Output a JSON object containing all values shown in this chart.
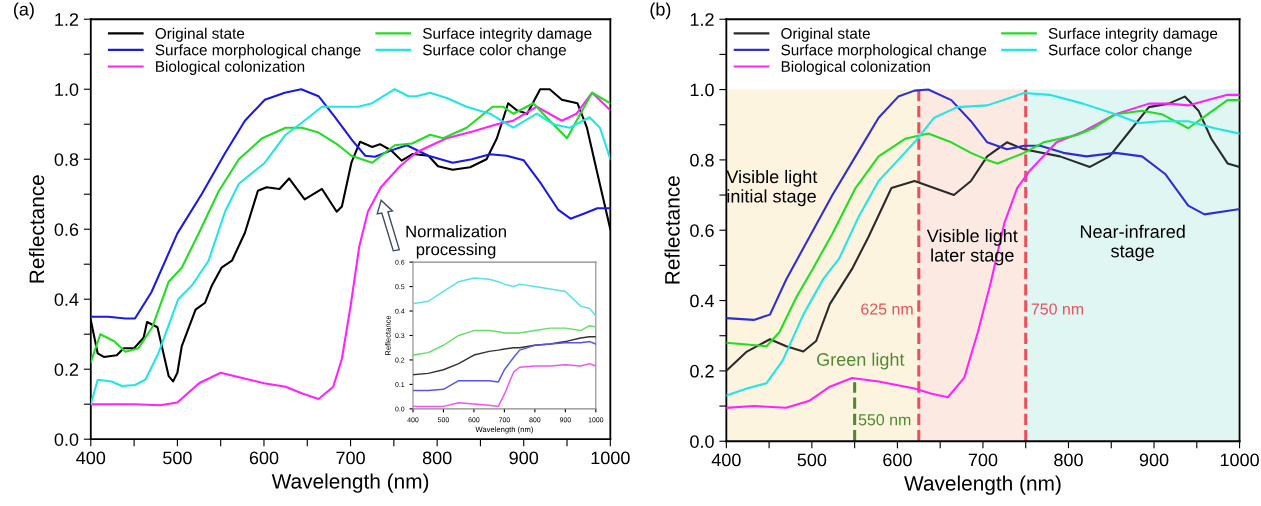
{
  "chart_data": [
    {
      "type": "line",
      "xlabel": "Wavelength (nm)",
      "ylabel": "Reflectance",
      "legend": "top",
      "grid": false,
      "marker": "none",
      "line_style": "solid",
      "annotations": [
        "(a)",
        "Normalization\nprocessing"
      ],
      "xlim": [
        400,
        1000
      ],
      "ylim": [
        0,
        1.2
      ],
      "xticks": [
        400,
        {
          "value": 450,
          "label": null
        },
        500,
        {
          "value": 550,
          "label": null
        },
        600,
        {
          "value": 650,
          "label": null
        },
        700,
        {
          "value": 750,
          "label": null
        },
        800,
        {
          "value": 850,
          "label": null
        },
        900,
        {
          "value": 950,
          "label": null
        },
        1000
      ],
      "yticks": [
        {
          "value": 0,
          "label": "0.0"
        },
        {
          "value": 0.1,
          "label": null
        },
        {
          "value": 0.2,
          "label": "0.2"
        },
        {
          "value": 0.3,
          "label": null
        },
        {
          "value": 0.4,
          "label": "0.4"
        },
        {
          "value": 0.5,
          "label": null
        },
        {
          "value": 0.6,
          "label": "0.6"
        },
        {
          "value": 0.7,
          "label": null
        },
        {
          "value": 0.8,
          "label": "0.8"
        },
        {
          "value": 0.9,
          "label": null
        },
        {
          "value": 1.0,
          "label": "1.0"
        },
        {
          "value": 1.1,
          "label": null
        },
        {
          "value": 1.2,
          "label": "1.2"
        }
      ],
      "series": [
        {
          "name": "Original state",
          "color": "#000000",
          "x": [
            400,
            408,
            415,
            430,
            438,
            450,
            461,
            465,
            477,
            490,
            495,
            500,
            505,
            521,
            532,
            540,
            551,
            563,
            578,
            593,
            603,
            618,
            629,
            647,
            667,
            684,
            690,
            701,
            711,
            725,
            734,
            747,
            759,
            772,
            790,
            801,
            818,
            838,
            857,
            869,
            882,
            892,
            904,
            919,
            930,
            944,
            962,
            973,
            985,
            1000
          ],
          "values": [
            0.34,
            0.245,
            0.235,
            0.24,
            0.26,
            0.26,
            0.29,
            0.335,
            0.32,
            0.18,
            0.165,
            0.19,
            0.265,
            0.37,
            0.39,
            0.44,
            0.49,
            0.51,
            0.59,
            0.71,
            0.72,
            0.715,
            0.745,
            0.685,
            0.715,
            0.65,
            0.665,
            0.79,
            0.85,
            0.835,
            0.843,
            0.825,
            0.796,
            0.815,
            0.81,
            0.78,
            0.77,
            0.777,
            0.8,
            0.86,
            0.96,
            0.94,
            0.93,
            1.0,
            1.0,
            0.97,
            0.96,
            0.89,
            0.76,
            0.6
          ]
        },
        {
          "name": "Surface morphological change",
          "color": "#1a1ae6",
          "x": [
            400,
            420,
            440,
            451,
            470,
            500,
            528,
            555,
            578,
            601,
            624,
            643,
            663,
            682,
            702,
            717,
            728,
            748,
            765,
            790,
            818,
            840,
            861,
            880,
            900,
            920,
            940,
            954,
            970,
            985,
            1000
          ],
          "values": [
            0.35,
            0.35,
            0.345,
            0.345,
            0.42,
            0.588,
            0.7,
            0.817,
            0.91,
            0.97,
            0.99,
            1.0,
            0.98,
            0.92,
            0.854,
            0.81,
            0.807,
            0.826,
            0.84,
            0.81,
            0.79,
            0.8,
            0.814,
            0.81,
            0.797,
            0.73,
            0.655,
            0.63,
            0.645,
            0.66,
            0.66
          ]
        },
        {
          "name": "Biological colonization",
          "color": "#ff22ff",
          "x": [
            400,
            450,
            480,
            500,
            525,
            550,
            575,
            600,
            625,
            645,
            663,
            680,
            690,
            700,
            710,
            720,
            735,
            757,
            776,
            811,
            842,
            869,
            888,
            915,
            944,
            961,
            979,
            1000
          ],
          "values": [
            0.1,
            0.1,
            0.097,
            0.105,
            0.16,
            0.19,
            0.175,
            0.16,
            0.15,
            0.13,
            0.115,
            0.15,
            0.23,
            0.38,
            0.55,
            0.65,
            0.72,
            0.78,
            0.82,
            0.86,
            0.88,
            0.9,
            0.91,
            0.95,
            0.91,
            0.93,
            0.99,
            0.94
          ]
        },
        {
          "name": "Surface integrity damage",
          "color": "#22dd22",
          "x": [
            400,
            411,
            427,
            440,
            455,
            471,
            490,
            505,
            525,
            548,
            571,
            598,
            625,
            644,
            663,
            686,
            701,
            725,
            751,
            771,
            792,
            807,
            834,
            864,
            876,
            888,
            911,
            930,
            950,
            961,
            979,
            1000
          ],
          "values": [
            0.22,
            0.3,
            0.28,
            0.25,
            0.26,
            0.32,
            0.45,
            0.49,
            0.59,
            0.71,
            0.8,
            0.86,
            0.89,
            0.89,
            0.876,
            0.84,
            0.81,
            0.79,
            0.84,
            0.845,
            0.87,
            0.86,
            0.89,
            0.95,
            0.95,
            0.93,
            0.96,
            0.91,
            0.86,
            0.91,
            0.99,
            0.96
          ]
        },
        {
          "name": "Surface color change",
          "color": "#22e5e5",
          "x": [
            400,
            408,
            424,
            436,
            451,
            463,
            478,
            501,
            517,
            536,
            555,
            571,
            601,
            625,
            644,
            667,
            686,
            709,
            725,
            751,
            767,
            776,
            792,
            811,
            834,
            861,
            888,
            915,
            934,
            953,
            976,
            988,
            1000
          ],
          "values": [
            0.1,
            0.17,
            0.165,
            0.152,
            0.155,
            0.17,
            0.245,
            0.4,
            0.44,
            0.51,
            0.65,
            0.73,
            0.79,
            0.87,
            0.905,
            0.95,
            0.95,
            0.95,
            0.96,
            1.0,
            0.98,
            0.98,
            0.99,
            0.975,
            0.95,
            0.93,
            0.89,
            0.93,
            0.9,
            0.89,
            0.92,
            0.89,
            0.8
          ]
        }
      ]
    },
    {
      "type": "line",
      "xlabel": "Wavelength (nm)",
      "ylabel": "Reflectance",
      "grid": false,
      "marker": "none",
      "line_style": "solid",
      "xlim": [
        400,
        1000
      ],
      "ylim": [
        0,
        0.6
      ],
      "xticks": [
        400,
        500,
        600,
        700,
        800,
        900,
        1000
      ],
      "yticks": [
        {
          "value": 0,
          "label": "0.0"
        },
        {
          "value": 0.1,
          "label": "0.1"
        },
        {
          "value": 0.2,
          "label": "0.2"
        },
        {
          "value": 0.3,
          "label": "0.3"
        },
        {
          "value": 0.4,
          "label": "0.4"
        },
        {
          "value": 0.5,
          "label": "0.5"
        },
        {
          "value": 0.6,
          "label": "0.6"
        }
      ],
      "x": [
        400,
        450,
        500,
        550,
        600,
        650,
        680,
        700,
        730,
        750,
        800,
        850,
        900,
        950,
        980,
        1000
      ],
      "series": [
        {
          "color": "#55e0ee",
          "values": [
            0.43,
            0.44,
            0.48,
            0.52,
            0.535,
            0.53,
            0.52,
            0.51,
            0.5,
            0.51,
            0.5,
            0.49,
            0.48,
            0.42,
            0.41,
            0.38
          ]
        },
        {
          "color": "#66dd66",
          "values": [
            0.22,
            0.23,
            0.26,
            0.3,
            0.32,
            0.32,
            0.315,
            0.31,
            0.31,
            0.31,
            0.32,
            0.33,
            0.33,
            0.32,
            0.34,
            0.335
          ]
        },
        {
          "color": "#333333",
          "values": [
            0.14,
            0.145,
            0.16,
            0.185,
            0.22,
            0.235,
            0.24,
            0.245,
            0.25,
            0.25,
            0.26,
            0.265,
            0.275,
            0.29,
            0.295,
            0.295
          ]
        },
        {
          "color": "#5555ee",
          "values": [
            0.075,
            0.075,
            0.08,
            0.115,
            0.115,
            0.115,
            0.11,
            0.16,
            0.21,
            0.24,
            0.26,
            0.265,
            0.27,
            0.27,
            0.275,
            0.265
          ]
        },
        {
          "color": "#ee55ee",
          "values": [
            0.01,
            0.01,
            0.01,
            0.025,
            0.02,
            0.015,
            0.01,
            0.06,
            0.15,
            0.17,
            0.175,
            0.175,
            0.18,
            0.175,
            0.185,
            0.175
          ]
        }
      ]
    },
    {
      "type": "line",
      "xlabel": "Wavelength (nm)",
      "ylabel": "Reflectance",
      "legend": "top left",
      "grid": false,
      "marker": "none",
      "line_style": "solid",
      "annotations": [
        "(b)",
        "Green light"
      ],
      "xlim": [
        400,
        1000
      ],
      "ylim": [
        0,
        1.2
      ],
      "xticks": [
        400,
        {
          "value": 450,
          "label": null
        },
        500,
        {
          "value": 550,
          "label": null
        },
        600,
        {
          "value": 650,
          "label": null
        },
        700,
        {
          "value": 750,
          "label": null
        },
        800,
        {
          "value": 850,
          "label": null
        },
        900,
        {
          "value": 950,
          "label": null
        },
        1000
      ],
      "yticks": [
        {
          "value": 0,
          "label": "0.0"
        },
        {
          "value": 0.1,
          "label": null
        },
        {
          "value": 0.2,
          "label": "0.2"
        },
        {
          "value": 0.3,
          "label": null
        },
        {
          "value": 0.4,
          "label": "0.4"
        },
        {
          "value": 0.5,
          "label": null
        },
        {
          "value": 0.6,
          "label": "0.6"
        },
        {
          "value": 0.7,
          "label": null
        },
        {
          "value": 0.8,
          "label": "0.8"
        },
        {
          "value": 0.9,
          "label": null
        },
        {
          "value": 1.0,
          "label": "1.0"
        },
        {
          "value": 1.1,
          "label": null
        },
        {
          "value": 1.2,
          "label": "1.2"
        }
      ],
      "bands": [
        {
          "axis": "x",
          "from": 400,
          "to": 625,
          "label": "Visible light\ninitial stage",
          "color": "#fdf4e0"
        },
        {
          "axis": "x",
          "from": 625,
          "to": 750,
          "label": "Visible light\nlater stage",
          "color": "#fceae2"
        },
        {
          "axis": "x",
          "from": 750,
          "to": 1000,
          "label": "Near-infrared\nstage",
          "color": "#e0f6f2"
        }
      ],
      "ref_lines": [
        {
          "axis": "x",
          "value": 550,
          "label": "550 nm",
          "color": "#4e8a30",
          "line_style": "dashed"
        },
        {
          "axis": "x",
          "value": 625,
          "label": "625 nm",
          "color": "#e8505b",
          "line_style": "dashed"
        },
        {
          "axis": "x",
          "value": 750,
          "label": "750 nm",
          "color": "#e8505b",
          "line_style": "dashed"
        }
      ],
      "series": [
        {
          "name": "Original state",
          "color": "#2b2b2b",
          "x": [
            400,
            424,
            451,
            470,
            490,
            505,
            521,
            547,
            566,
            593,
            620,
            643,
            666,
            686,
            705,
            728,
            748,
            790,
            825,
            848,
            871,
            894,
            917,
            936,
            952,
            967,
            986,
            1000
          ],
          "values": [
            0.2,
            0.255,
            0.29,
            0.27,
            0.255,
            0.285,
            0.39,
            0.49,
            0.58,
            0.72,
            0.74,
            0.72,
            0.7,
            0.74,
            0.81,
            0.85,
            0.83,
            0.81,
            0.78,
            0.81,
            0.88,
            0.95,
            0.96,
            0.98,
            0.94,
            0.86,
            0.79,
            0.78
          ]
        },
        {
          "name": "Surface morphological change",
          "color": "#2e2ed6",
          "x": [
            400,
            432,
            451,
            470,
            497,
            524,
            551,
            578,
            601,
            620,
            636,
            663,
            686,
            705,
            728,
            748,
            767,
            794,
            821,
            855,
            886,
            913,
            940,
            959,
            1000
          ],
          "values": [
            0.35,
            0.345,
            0.36,
            0.46,
            0.58,
            0.7,
            0.81,
            0.92,
            0.98,
            0.997,
            1.0,
            0.97,
            0.91,
            0.85,
            0.83,
            0.84,
            0.84,
            0.82,
            0.81,
            0.82,
            0.81,
            0.76,
            0.67,
            0.645,
            0.66
          ]
        },
        {
          "name": "Biological colonization",
          "color": "#ff22ff",
          "x": [
            400,
            432,
            470,
            497,
            521,
            547,
            578,
            620,
            640,
            659,
            678,
            694,
            709,
            725,
            740,
            755,
            786,
            817,
            855,
            894,
            917,
            940,
            963,
            986,
            1000
          ],
          "values": [
            0.095,
            0.1,
            0.095,
            0.115,
            0.155,
            0.18,
            0.17,
            0.15,
            0.135,
            0.125,
            0.18,
            0.31,
            0.45,
            0.62,
            0.72,
            0.77,
            0.85,
            0.88,
            0.93,
            0.96,
            0.96,
            0.955,
            0.97,
            0.985,
            0.985
          ]
        },
        {
          "name": "Surface integrity damage",
          "color": "#22dd22",
          "x": [
            400,
            424,
            447,
            462,
            482,
            501,
            524,
            551,
            578,
            609,
            636,
            663,
            686,
            705,
            717,
            748,
            771,
            809,
            829,
            855,
            886,
            909,
            940,
            963,
            986,
            1000
          ],
          "values": [
            0.28,
            0.275,
            0.27,
            0.31,
            0.41,
            0.49,
            0.59,
            0.72,
            0.81,
            0.86,
            0.875,
            0.85,
            0.82,
            0.8,
            0.79,
            0.82,
            0.85,
            0.87,
            0.89,
            0.93,
            0.94,
            0.93,
            0.89,
            0.93,
            0.97,
            0.97
          ]
        },
        {
          "name": "Surface color change",
          "color": "#22e5e5",
          "x": [
            400,
            424,
            447,
            466,
            490,
            513,
            532,
            555,
            578,
            601,
            620,
            643,
            670,
            705,
            748,
            778,
            817,
            855,
            882,
            909,
            940,
            971,
            1000
          ],
          "values": [
            0.13,
            0.15,
            0.165,
            0.23,
            0.36,
            0.46,
            0.52,
            0.64,
            0.74,
            0.8,
            0.85,
            0.92,
            0.95,
            0.955,
            0.99,
            0.985,
            0.96,
            0.93,
            0.905,
            0.91,
            0.91,
            0.89,
            0.875
          ]
        }
      ]
    }
  ]
}
